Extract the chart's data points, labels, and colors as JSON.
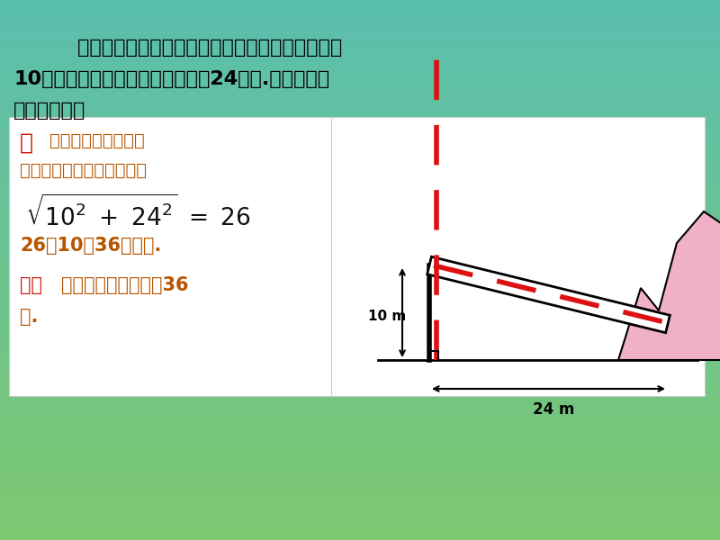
{
  "bg_color_top": "#5bbfb0",
  "bg_color_bottom": "#7dc870",
  "title_line1": "    如图所示，一棵大树在一次强烈的地震中于离地面",
  "title_line2": "10米处折断倒下，树顶落在离树根24米处.大树在折断",
  "title_line3": "之前高多少？",
  "sol_red1": "解",
  "sol_brown1": "    利用勾股定理可以求",
  "sol_brown2": "出折断倒下部分的长度为：",
  "sol_brown4": "26＋10＝36（米）.",
  "sol_red5": "答：",
  "sol_brown5": "大树在折断之前高为36",
  "sol_brown6": "米.",
  "sol_color_red": "#cc1100",
  "sol_color_brown": "#b85500",
  "sol_color_black": "#111111",
  "title_color": "#000000",
  "white_color": "#ffffff",
  "pink_color": "#f0b0c8",
  "black_color": "#000000",
  "red_color": "#dd1111"
}
